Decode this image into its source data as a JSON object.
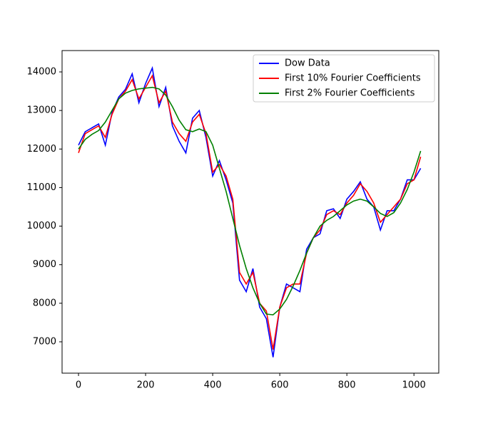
{
  "chart_data": {
    "type": "line",
    "x": [
      0,
      20,
      40,
      60,
      80,
      100,
      120,
      140,
      160,
      180,
      200,
      220,
      240,
      260,
      280,
      300,
      320,
      340,
      360,
      380,
      400,
      420,
      440,
      460,
      480,
      500,
      520,
      540,
      560,
      580,
      600,
      620,
      640,
      660,
      680,
      700,
      720,
      740,
      760,
      780,
      800,
      820,
      840,
      860,
      880,
      900,
      920,
      940,
      960,
      980,
      1000,
      1020
    ],
    "series": [
      {
        "name": "Dow Data",
        "color": "#0000ff",
        "values": [
          12100,
          12450,
          12550,
          12650,
          12100,
          12950,
          13350,
          13550,
          13950,
          13200,
          13700,
          14100,
          13100,
          13600,
          12600,
          12200,
          11900,
          12800,
          13000,
          12300,
          11300,
          11700,
          11200,
          10600,
          8600,
          8300,
          8900,
          7900,
          7600,
          6600,
          7900,
          8500,
          8400,
          8300,
          9400,
          9700,
          9800,
          10400,
          10450,
          10200,
          10700,
          10900,
          11150,
          10700,
          10500,
          9900,
          10400,
          10400,
          10700,
          11200,
          11200,
          11500
        ]
      },
      {
        "name": "First 10% Fourier Coefficients",
        "color": "#ff0000",
        "values": [
          11900,
          12400,
          12500,
          12600,
          12300,
          12900,
          13300,
          13500,
          13800,
          13300,
          13600,
          13900,
          13200,
          13500,
          12700,
          12400,
          12200,
          12700,
          12900,
          12400,
          11400,
          11600,
          11300,
          10700,
          8800,
          8500,
          8800,
          8000,
          7800,
          6800,
          7900,
          8400,
          8500,
          8500,
          9300,
          9700,
          9900,
          10300,
          10400,
          10300,
          10600,
          10800,
          11100,
          10900,
          10600,
          10100,
          10300,
          10500,
          10700,
          11100,
          11200,
          11800
        ]
      },
      {
        "name": "First 2% Fourier Coefficients",
        "color": "#008000",
        "values": [
          12000,
          12250,
          12380,
          12480,
          12700,
          13000,
          13300,
          13450,
          13520,
          13560,
          13580,
          13600,
          13560,
          13400,
          13100,
          12750,
          12500,
          12450,
          12520,
          12450,
          12100,
          11500,
          10900,
          10200,
          9500,
          8900,
          8400,
          8000,
          7720,
          7700,
          7850,
          8100,
          8450,
          8850,
          9300,
          9700,
          10000,
          10150,
          10250,
          10400,
          10550,
          10650,
          10700,
          10650,
          10500,
          10330,
          10250,
          10350,
          10600,
          10950,
          11400,
          11950
        ]
      }
    ],
    "xlim": [
      -49,
      1074
    ],
    "xticks": [
      0,
      200,
      400,
      600,
      800,
      1000
    ],
    "ylim": [
      6187,
      14554
    ],
    "yticks": [
      7000,
      8000,
      9000,
      10000,
      11000,
      12000,
      13000,
      14000
    ],
    "legend": "upper right"
  }
}
